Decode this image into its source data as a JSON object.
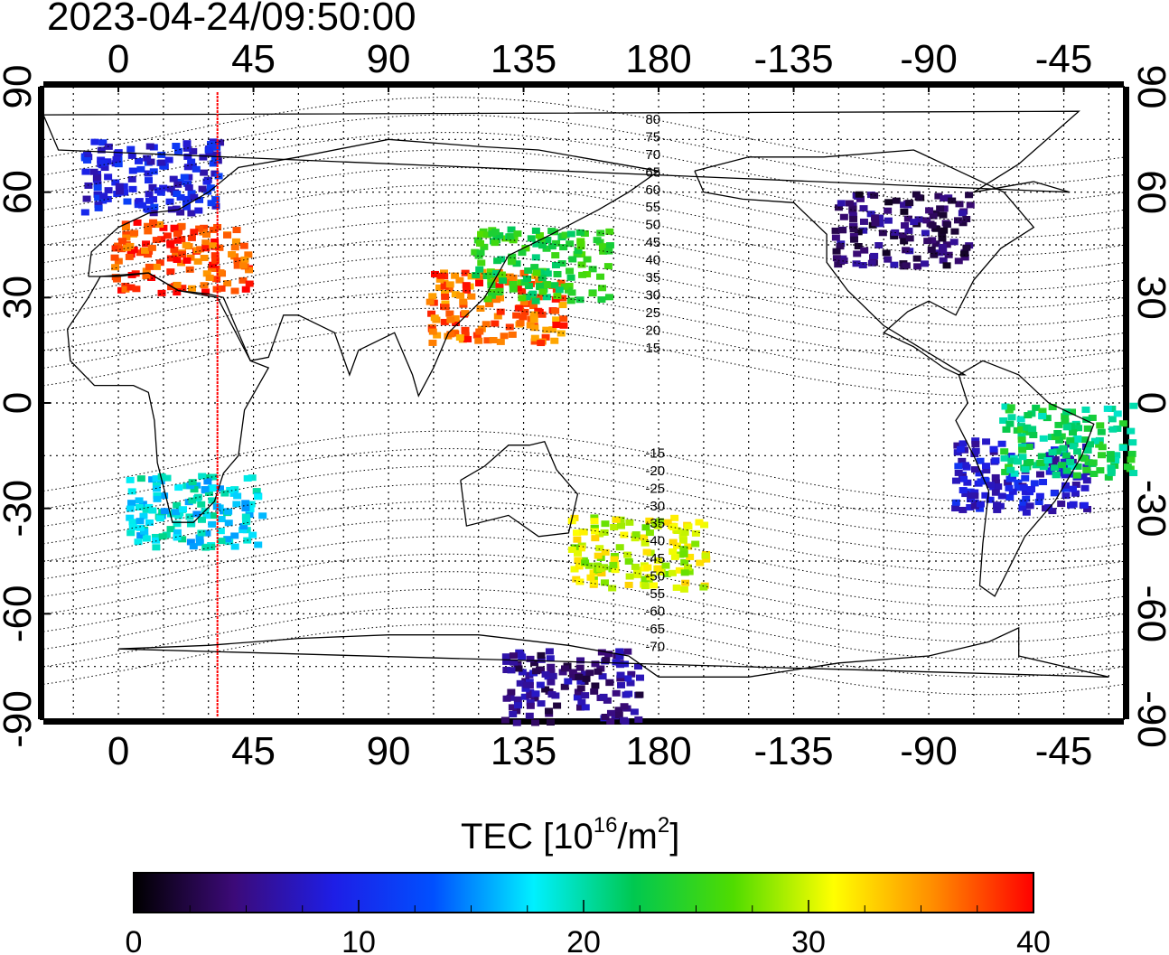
{
  "timestamp": "2023-04-24/09:50:00",
  "map": {
    "lon_ticks": [
      0,
      45,
      90,
      135,
      180,
      -135,
      -90,
      -45
    ],
    "lat_ticks": [
      90,
      60,
      30,
      0,
      -30,
      -60,
      -90
    ],
    "lon_range": [
      -25,
      335
    ],
    "lat_range": [
      -90,
      90
    ],
    "grid": "dotted every 15 degrees",
    "contour_labels": [
      "80",
      "75",
      "70",
      "65",
      "60",
      "55",
      "50",
      "45",
      "40",
      "35",
      "30",
      "25",
      "20",
      "15",
      "-15",
      "-20",
      "-25",
      "-30",
      "-35",
      "-40",
      "-45",
      "-50",
      "-55",
      "-60",
      "-65",
      "-70"
    ],
    "marker_line_lon": 33,
    "marker_line_color": "#ff0000"
  },
  "colorbar": {
    "label_main": "TEC  [10",
    "label_sup1": "16",
    "label_mid": "/m",
    "label_sup2": "2",
    "label_end": "]",
    "ticks": [
      "0",
      "10",
      "20",
      "30",
      "40"
    ],
    "range": [
      0,
      40
    ],
    "colors": [
      "#000000",
      "#3c0a78",
      "#1e1ee6",
      "#0050ff",
      "#00f0ff",
      "#00c850",
      "#50dc00",
      "#ffff00",
      "#ff8c00",
      "#ff0000"
    ]
  },
  "tec_regions": [
    {
      "name": "europe",
      "lon": 20,
      "lat": 42,
      "tec": 38
    },
    {
      "name": "north-atlantic",
      "lon": 10,
      "lat": 65,
      "tec": 9
    },
    {
      "name": "east-asia",
      "lon": 125,
      "lat": 28,
      "tec": 37
    },
    {
      "name": "japan",
      "lon": 140,
      "lat": 40,
      "tec": 24
    },
    {
      "name": "north-america",
      "lon": -100,
      "lat": 50,
      "tec": 4
    },
    {
      "name": "south-america",
      "lon": -60,
      "lat": -20,
      "tec": 8
    },
    {
      "name": "brazil-coast",
      "lon": -45,
      "lat": -10,
      "tec": 22
    },
    {
      "name": "new-zealand",
      "lon": 172,
      "lat": -42,
      "tec": 30
    },
    {
      "name": "antarctica",
      "lon": 150,
      "lat": -80,
      "tec": 5
    },
    {
      "name": "southern-africa",
      "lon": 25,
      "lat": -30,
      "tec": 18
    }
  ]
}
